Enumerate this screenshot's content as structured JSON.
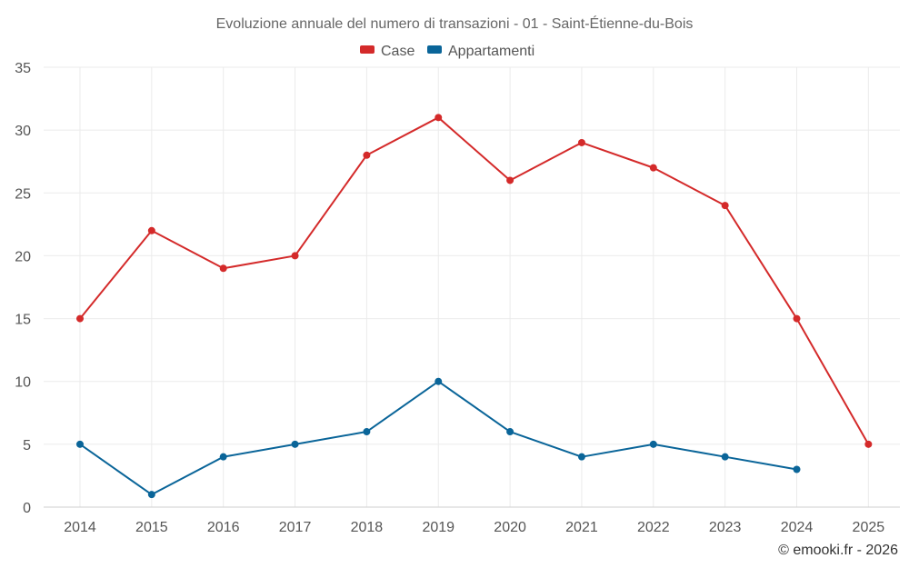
{
  "chart_data": {
    "type": "line",
    "title": "Evoluzione annuale del numero di transazioni - 01 - Saint-Étienne-du-Bois",
    "x": [
      "2014",
      "2015",
      "2016",
      "2017",
      "2018",
      "2019",
      "2020",
      "2021",
      "2022",
      "2023",
      "2024",
      "2025"
    ],
    "series": [
      {
        "name": "Case",
        "color": "#d42a2a",
        "values": [
          15,
          22,
          19,
          20,
          28,
          31,
          26,
          29,
          27,
          24,
          15,
          5
        ]
      },
      {
        "name": "Appartamenti",
        "color": "#0a6599",
        "values": [
          5,
          1,
          4,
          5,
          6,
          10,
          6,
          4,
          5,
          4,
          3,
          null
        ]
      }
    ],
    "yticks": [
      "0",
      "5",
      "10",
      "15",
      "20",
      "25",
      "30",
      "35"
    ],
    "ylim": [
      0,
      35
    ],
    "grid": true,
    "legend": "top-center"
  },
  "credit": "© emooki.fr - 2026"
}
